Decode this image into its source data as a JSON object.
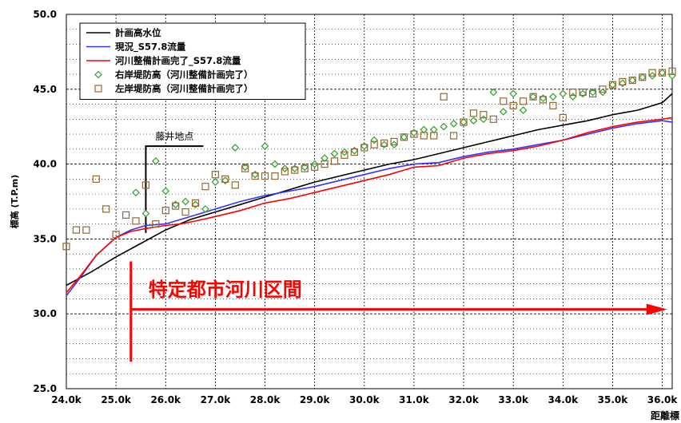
{
  "chart_data": {
    "type": "line",
    "ylabel": "標高 (T.P.m)",
    "xlabel": "距離標",
    "xlim": [
      24.0,
      36.2
    ],
    "ylim": [
      25.0,
      50.0
    ],
    "x_ticks": [
      "24.0k",
      "25.0k",
      "26.0k",
      "27.0k",
      "28.0k",
      "29.0k",
      "30.0k",
      "31.0k",
      "32.0k",
      "33.0k",
      "34.0k",
      "35.0k",
      "36.0k"
    ],
    "y_ticks": [
      "25.0",
      "30.0",
      "35.0",
      "40.0",
      "45.0",
      "50.0"
    ],
    "grid": true,
    "legend_position": "top-left",
    "series": [
      {
        "name": "計画高水位",
        "kind": "line",
        "color": "#000000",
        "x": [
          24.0,
          24.5,
          25.0,
          25.5,
          26.0,
          26.5,
          27.0,
          27.5,
          28.0,
          28.5,
          29.0,
          29.5,
          30.0,
          30.5,
          31.0,
          31.5,
          32.0,
          32.5,
          33.0,
          33.5,
          34.0,
          34.5,
          35.0,
          35.5,
          36.0,
          36.2
        ],
        "y": [
          31.9,
          32.8,
          33.8,
          34.7,
          35.6,
          36.3,
          36.8,
          37.3,
          37.8,
          38.3,
          38.8,
          39.2,
          39.6,
          40.0,
          40.3,
          40.7,
          41.1,
          41.5,
          41.9,
          42.3,
          42.6,
          42.9,
          43.3,
          43.6,
          44.1,
          44.7
        ]
      },
      {
        "name": "現況_S57.8流量",
        "kind": "line",
        "color": "#3333ff",
        "x": [
          24.0,
          24.3,
          24.6,
          25.0,
          25.3,
          25.6,
          26.0,
          26.3,
          26.6,
          27.0,
          27.5,
          28.0,
          28.5,
          29.0,
          29.5,
          30.0,
          30.5,
          31.0,
          31.5,
          32.0,
          32.5,
          33.0,
          33.5,
          34.0,
          34.5,
          35.0,
          35.5,
          36.0,
          36.2
        ],
        "y": [
          31.2,
          32.5,
          33.9,
          35.1,
          35.6,
          35.9,
          36.0,
          36.3,
          36.6,
          37.0,
          37.5,
          37.9,
          38.2,
          38.5,
          38.9,
          39.3,
          39.7,
          40.0,
          40.1,
          40.5,
          40.8,
          41.0,
          41.3,
          41.6,
          42.0,
          42.4,
          42.7,
          42.9,
          42.8
        ]
      },
      {
        "name": "河川整備計画完了_S57.8流量",
        "kind": "line",
        "color": "#ff0000",
        "x": [
          24.0,
          24.3,
          24.6,
          25.0,
          25.3,
          25.6,
          26.0,
          26.3,
          26.6,
          27.0,
          27.5,
          28.0,
          28.5,
          29.0,
          29.5,
          30.0,
          30.5,
          31.0,
          31.5,
          32.0,
          32.5,
          33.0,
          33.5,
          34.0,
          34.5,
          35.0,
          35.5,
          36.0,
          36.2
        ],
        "y": [
          31.4,
          32.6,
          33.9,
          35.1,
          35.5,
          35.7,
          35.9,
          36.0,
          36.2,
          36.5,
          36.9,
          37.4,
          37.7,
          38.1,
          38.5,
          38.9,
          39.3,
          39.8,
          39.9,
          40.4,
          40.7,
          40.9,
          41.2,
          41.6,
          42.1,
          42.5,
          42.8,
          43.0,
          43.1
        ]
      },
      {
        "name": "右岸堤防高（河川整備計画完了）",
        "kind": "scatter",
        "marker": "diamond",
        "color": "#2ca02c",
        "x": [
          25.4,
          25.6,
          25.8,
          26.0,
          26.2,
          26.4,
          26.6,
          26.8,
          27.0,
          27.2,
          27.4,
          27.6,
          27.8,
          28.0,
          28.2,
          28.4,
          28.6,
          28.8,
          29.0,
          29.2,
          29.4,
          29.6,
          29.8,
          30.0,
          30.2,
          30.4,
          30.6,
          30.8,
          31.0,
          31.2,
          31.4,
          31.6,
          31.8,
          32.0,
          32.2,
          32.4,
          32.6,
          32.8,
          33.0,
          33.2,
          33.4,
          33.6,
          33.8,
          34.0,
          34.2,
          34.4,
          34.6,
          34.8,
          35.0,
          35.2,
          35.4,
          35.6,
          35.8,
          36.0,
          36.2
        ],
        "y": [
          38.1,
          36.7,
          40.2,
          38.2,
          37.3,
          37.5,
          37.3,
          37.0,
          38.8,
          38.9,
          41.1,
          39.8,
          39.3,
          41.2,
          40.0,
          39.7,
          39.7,
          39.8,
          40.0,
          40.4,
          40.7,
          40.8,
          40.9,
          41.2,
          41.6,
          41.3,
          41.3,
          41.8,
          42.1,
          42.3,
          42.3,
          42.5,
          42.7,
          42.8,
          42.9,
          43.0,
          44.8,
          43.5,
          44.7,
          43.6,
          44.5,
          44.4,
          44.5,
          44.7,
          44.5,
          44.7,
          44.8,
          44.8,
          45.3,
          45.4,
          45.6,
          45.8,
          45.9,
          46.1,
          45.9
        ]
      },
      {
        "name": "左岸堤防高（河川整備計画完了）",
        "kind": "scatter",
        "marker": "square",
        "color": "#996633",
        "x": [
          24.0,
          24.2,
          24.4,
          24.6,
          24.8,
          25.0,
          25.2,
          25.4,
          25.6,
          25.8,
          26.0,
          26.2,
          26.4,
          26.6,
          26.8,
          27.0,
          27.2,
          27.4,
          27.6,
          27.8,
          28.0,
          28.2,
          28.4,
          28.6,
          28.8,
          29.0,
          29.2,
          29.4,
          29.6,
          29.8,
          30.0,
          30.2,
          30.4,
          30.6,
          30.8,
          31.0,
          31.2,
          31.4,
          31.6,
          31.8,
          32.0,
          32.2,
          32.4,
          32.6,
          32.8,
          33.0,
          33.2,
          33.4,
          33.6,
          33.8,
          34.0,
          34.2,
          34.4,
          34.6,
          34.8,
          35.0,
          35.2,
          35.4,
          35.6,
          35.8,
          36.0,
          36.2
        ],
        "y": [
          34.5,
          35.6,
          35.6,
          39.0,
          37.0,
          35.3,
          36.6,
          36.2,
          38.6,
          36.0,
          36.9,
          37.2,
          36.8,
          37.4,
          38.5,
          39.3,
          39.0,
          38.6,
          39.7,
          39.2,
          39.2,
          39.2,
          39.5,
          39.6,
          39.7,
          39.8,
          40.0,
          40.2,
          40.6,
          40.8,
          41.1,
          41.3,
          41.4,
          41.5,
          41.8,
          42.0,
          41.9,
          41.9,
          44.5,
          41.9,
          42.8,
          43.4,
          43.3,
          43.0,
          44.2,
          43.9,
          44.2,
          44.5,
          44.3,
          43.9,
          43.1,
          44.8,
          44.8,
          44.7,
          45.0,
          45.3,
          45.5,
          45.6,
          45.8,
          46.1,
          46.1,
          46.2
        ]
      }
    ],
    "annotations": [
      {
        "text": "藤井地点",
        "x": 25.6
      },
      {
        "text": "特定都市河川区間",
        "start_x": 25.3,
        "end_x": 36.1,
        "y": 30.3,
        "color": "#ff0000"
      }
    ]
  }
}
